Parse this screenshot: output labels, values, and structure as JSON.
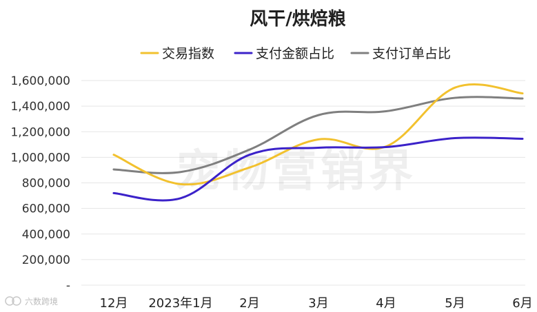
{
  "chart_data": {
    "type": "line",
    "title": "风干/烘焙粮",
    "categories": [
      "12月",
      "2023年1月",
      "2月",
      "3月",
      "4月",
      "5月",
      "6月"
    ],
    "ylim": [
      0,
      1600000
    ],
    "yticks": [
      "-",
      "200,000",
      "400,000",
      "600,000",
      "800,000",
      "1,000,000",
      "1,200,000",
      "1,400,000",
      "1,600,000"
    ],
    "ytick_values": [
      0,
      200000,
      400000,
      600000,
      800000,
      1000000,
      1200000,
      1400000,
      1600000
    ],
    "grid": true,
    "legend_position": "top",
    "series": [
      {
        "name": "交易指数",
        "color": "#f2c12e",
        "values": [
          1020000,
          790000,
          920000,
          1140000,
          1085000,
          1545000,
          1500000
        ]
      },
      {
        "name": "支付金额占比",
        "color": "#3b22c9",
        "values": [
          720000,
          680000,
          1020000,
          1075000,
          1080000,
          1150000,
          1145000
        ]
      },
      {
        "name": "支付订单占比",
        "color": "#7f7f7f",
        "values": [
          905000,
          885000,
          1060000,
          1330000,
          1360000,
          1465000,
          1460000
        ]
      }
    ]
  },
  "watermark": "宠物营销界",
  "brand": "六数跨境"
}
